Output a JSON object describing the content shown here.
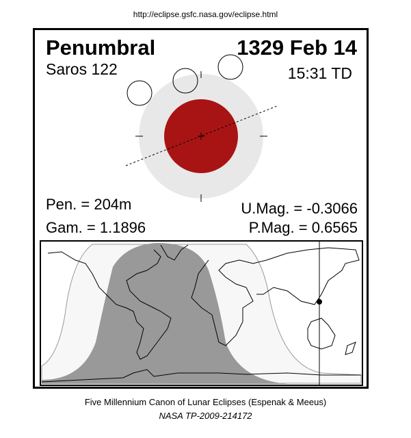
{
  "url": "http://eclipse.gsfc.nasa.gov/eclipse.html",
  "eclipse_type": "Penumbral",
  "date": "1329 Feb 14",
  "saros": "Saros 122",
  "time": "15:31 TD",
  "penumbral_duration": "Pen. = 204m",
  "gamma": "Gam. = 1.1896",
  "umbral_magnitude": "U.Mag. = -0.3066",
  "penumbral_magnitude": "P.Mag. = 0.6565",
  "footer_title": "Five Millennium Canon of Lunar Eclipses (Espenak & Meeus)",
  "footer_ref": "NASA TP-2009-214172",
  "colors": {
    "umbra": "#a81414",
    "penumbra": "#e8e8e8",
    "eclipse_visible": "#999999",
    "partial_visible": "#f7f7f7"
  }
}
